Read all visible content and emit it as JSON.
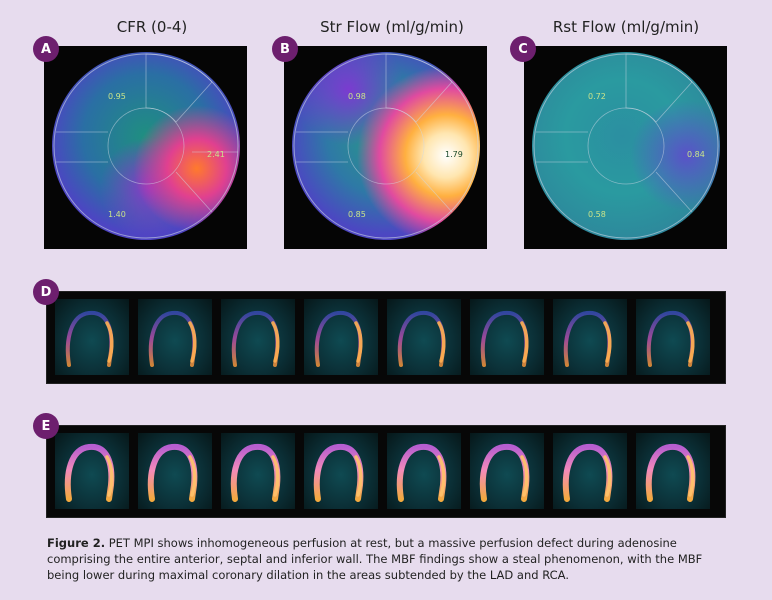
{
  "panels": {
    "a": {
      "badge": "A",
      "title": "CFR (0-4)",
      "labels": [
        "0.95",
        "2.41",
        "1.40"
      ]
    },
    "b": {
      "badge": "B",
      "title": "Str Flow (ml/g/min)",
      "labels": [
        "0.98",
        "1.79",
        "0.85"
      ]
    },
    "c": {
      "badge": "C",
      "title": "Rst Flow (ml/g/min)",
      "labels": [
        "0.72",
        "0.84",
        "0.58"
      ]
    },
    "d": {
      "badge": "D",
      "slices": 8
    },
    "e": {
      "badge": "E",
      "slices": 8
    }
  },
  "caption": {
    "label": "Figure 2.",
    "text": " PET MPI shows inhomogeneous perfusion at rest, but a massive perfusion defect during adenosine comprising the entire anterior, septal and inferior wall. The MBF findings show a steal phenomenon, with the MBF being lower during maximal coronary dilation in the areas subtended by the LAD and RCA."
  },
  "colors": {
    "badge": "#6d1f6e",
    "background": "#e7dcee"
  }
}
